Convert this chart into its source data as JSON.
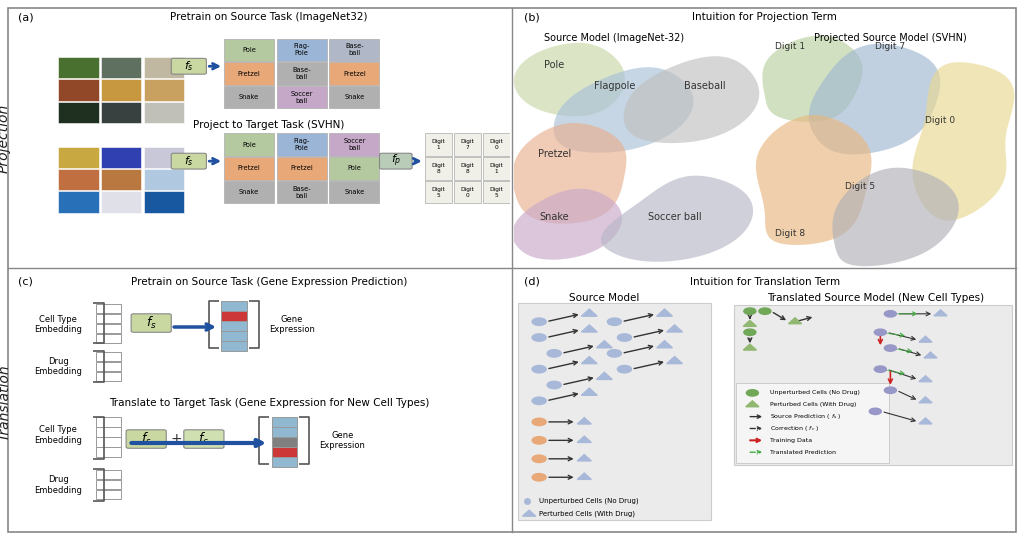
{
  "fig_width": 10.24,
  "fig_height": 5.38,
  "bg_color": "#ffffff",
  "panel_titles": {
    "a": "Pretrain on Source Task (ImageNet32)",
    "b": "Intuition for Projection Term",
    "c": "Pretrain on Source Task (Gene Expression Prediction)",
    "d": "Intuition for Translation Term"
  },
  "panel_labels": [
    "(a)",
    "(b)",
    "(c)",
    "(d)"
  ],
  "row_labels": [
    "Projection",
    "Translation"
  ],
  "panel_a_subtitle": "Project to Target Task (SVHN)",
  "panel_c_subtitle": "Translate to Target Task (Gene Expression for New Cell Types)",
  "grid_colors_top": {
    "r0": [
      "#b5c9a0",
      "#9bb5d6",
      "#b0b8c8"
    ],
    "r1": [
      "#e8a878",
      "#b0b0b0",
      "#e8a878"
    ],
    "r2": [
      "#b0b0b0",
      "#c5a8c8",
      "#b0b0b0"
    ]
  },
  "cell_labels_top": [
    [
      "Pole",
      "Flag-\nPole",
      "Base-\nball"
    ],
    [
      "Pretzel",
      "Base-\nball",
      "Pretzel"
    ],
    [
      "Snake",
      "Soccer\nball",
      "Snake"
    ]
  ],
  "grid_colors_mid": {
    "r0": [
      "#b5c9a0",
      "#9bb5d6",
      "#c5a8c8"
    ],
    "r1": [
      "#e8a878",
      "#e8a878",
      "#b5c9a0"
    ],
    "r2": [
      "#b0b0b0",
      "#b0b0b0",
      "#b0b0b0"
    ]
  },
  "cell_labels_mid": [
    [
      "Pole",
      "Flag-\nPole",
      "Soccer\nball"
    ],
    [
      "Pretzel",
      "Pretzel",
      "Pole"
    ],
    [
      "Snake",
      "Base-\nball",
      "Snake"
    ]
  ],
  "digit_labels": [
    [
      "Digit\n1",
      "Digit\n7",
      "Digit\n0"
    ],
    [
      "Digit\n8",
      "Digit\n8",
      "Digit\n1"
    ],
    [
      "Digit\n5",
      "Digit\n0",
      "Digit\n5"
    ]
  ],
  "source_model_label": "Source Model (ImageNet-32)",
  "projected_model_label": "Projected Source Model (SVHN)",
  "source_model_label_d": "Source Model",
  "translated_model_label": "Translated Source Model (New Cell Types)",
  "blob_colors_left": {
    "pole": "#c8d8a8",
    "flagpole": "#a8c0d8",
    "baseball": "#c0c0c0",
    "pretzel": "#e8b090",
    "snake": "#c8a8c8",
    "soccer": "#b8b8c8"
  },
  "blob_colors_right": {
    "digit1": "#b8d0a0",
    "digit7": "#a0b8d0",
    "digit0": "#e8d890",
    "digit8": "#e8b880",
    "digit5": "#b0b0b8"
  },
  "arrow_color": "#2050a0",
  "fs_box_color": "#c8d8a0",
  "fc_box_color": "#d0e0b0",
  "fp_box_color": "#b8ccb8",
  "cell_type_label": "Cell Type\nEmbedding",
  "drug_label": "Drug\nEmbedding",
  "gene_expression_label": "Gene\nExpression",
  "scatter_unpert_color": "#a8b8d8",
  "scatter_pert_orange_color": "#e8a878",
  "scatter_green_color": "#70a858",
  "scatter_purple_color": "#9898c8",
  "legend_d_items": [
    [
      "circle_green",
      "#70a858",
      "Unperturbed Cells (No Drug)"
    ],
    [
      "tri_green",
      "#70a858",
      "Perturbed Cells (With Drug)"
    ],
    [
      "arrow_black",
      "#333333",
      "Source Prediction ( f_s )"
    ],
    [
      "arrow_dashed",
      "#333333",
      "Correction ( f_c )"
    ],
    [
      "arrow_red",
      "#cc3333",
      "Training Data"
    ],
    [
      "arrow_green_dashed",
      "#44aa44",
      "Translated Prediction"
    ]
  ]
}
